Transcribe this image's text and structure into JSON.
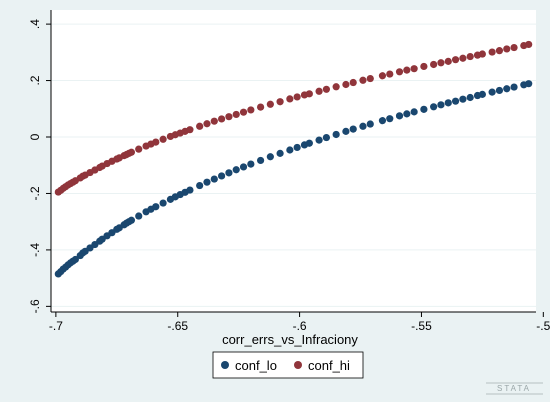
{
  "chart_data": {
    "type": "scatter",
    "title": "",
    "xlabel": "corr_errs_vs_Infraciony",
    "ylabel": "",
    "xlim": [
      -0.702,
      -0.503
    ],
    "ylim": [
      -0.62,
      0.45
    ],
    "x_ticks": [
      -0.7,
      -0.65,
      -0.6,
      -0.55,
      -0.5
    ],
    "x_tick_labels": [
      "-.7",
      "-.65",
      "-.6",
      "-.55",
      "-.5"
    ],
    "y_ticks": [
      -0.6,
      -0.4,
      -0.2,
      0,
      0.2,
      0.4
    ],
    "y_tick_labels": [
      "-.6",
      "-.4",
      "-.2",
      "0",
      ".2",
      ".4"
    ],
    "grid": "horizontal",
    "legend_position": "bottom",
    "series": [
      {
        "name": "conf_lo",
        "color": "#1a476f",
        "points": [
          [
            -0.699,
            -0.485
          ],
          [
            -0.698,
            -0.477
          ],
          [
            -0.697,
            -0.468
          ],
          [
            -0.696,
            -0.461
          ],
          [
            -0.695,
            -0.453
          ],
          [
            -0.694,
            -0.446
          ],
          [
            -0.693,
            -0.44
          ],
          [
            -0.692,
            -0.434
          ],
          [
            -0.69,
            -0.42
          ],
          [
            -0.689,
            -0.411
          ],
          [
            -0.688,
            -0.405
          ],
          [
            -0.686,
            -0.393
          ],
          [
            -0.684,
            -0.381
          ],
          [
            -0.682,
            -0.369
          ],
          [
            -0.681,
            -0.362
          ],
          [
            -0.679,
            -0.35
          ],
          [
            -0.677,
            -0.339
          ],
          [
            -0.675,
            -0.327
          ],
          [
            -0.674,
            -0.322
          ],
          [
            -0.672,
            -0.311
          ],
          [
            -0.671,
            -0.305
          ],
          [
            -0.67,
            -0.3
          ],
          [
            -0.669,
            -0.295
          ],
          [
            -0.666,
            -0.28
          ],
          [
            -0.663,
            -0.265
          ],
          [
            -0.661,
            -0.256
          ],
          [
            -0.659,
            -0.247
          ],
          [
            -0.656,
            -0.234
          ],
          [
            -0.653,
            -0.221
          ],
          [
            -0.651,
            -0.212
          ],
          [
            -0.649,
            -0.204
          ],
          [
            -0.647,
            -0.196
          ],
          [
            -0.645,
            -0.188
          ],
          [
            -0.641,
            -0.172
          ],
          [
            -0.638,
            -0.16
          ],
          [
            -0.635,
            -0.149
          ],
          [
            -0.632,
            -0.138
          ],
          [
            -0.629,
            -0.127
          ],
          [
            -0.626,
            -0.116
          ],
          [
            -0.623,
            -0.106
          ],
          [
            -0.62,
            -0.096
          ],
          [
            -0.616,
            -0.083
          ],
          [
            -0.612,
            -0.07
          ],
          [
            -0.608,
            -0.058
          ],
          [
            -0.604,
            -0.046
          ],
          [
            -0.601,
            -0.037
          ],
          [
            -0.598,
            -0.028
          ],
          [
            -0.596,
            -0.022
          ],
          [
            -0.592,
            -0.011
          ],
          [
            -0.589,
            -0.002
          ],
          [
            -0.585,
            0.009
          ],
          [
            -0.581,
            0.02
          ],
          [
            -0.578,
            0.028
          ],
          [
            -0.574,
            0.038
          ],
          [
            -0.571,
            0.046
          ],
          [
            -0.566,
            0.058
          ],
          [
            -0.563,
            0.065
          ],
          [
            -0.559,
            0.075
          ],
          [
            -0.556,
            0.082
          ],
          [
            -0.553,
            0.089
          ],
          [
            -0.549,
            0.098
          ],
          [
            -0.545,
            0.107
          ],
          [
            -0.542,
            0.114
          ],
          [
            -0.539,
            0.121
          ],
          [
            -0.536,
            0.127
          ],
          [
            -0.533,
            0.134
          ],
          [
            -0.53,
            0.14
          ],
          [
            -0.527,
            0.147
          ],
          [
            -0.525,
            0.151
          ],
          [
            -0.521,
            0.159
          ],
          [
            -0.518,
            0.165
          ],
          [
            -0.515,
            0.171
          ],
          [
            -0.512,
            0.177
          ],
          [
            -0.508,
            0.185
          ],
          [
            -0.506,
            0.189
          ]
        ]
      },
      {
        "name": "conf_hi",
        "color": "#90353b",
        "points": [
          [
            -0.699,
            -0.195
          ],
          [
            -0.698,
            -0.189
          ],
          [
            -0.697,
            -0.182
          ],
          [
            -0.696,
            -0.176
          ],
          [
            -0.695,
            -0.17
          ],
          [
            -0.694,
            -0.165
          ],
          [
            -0.693,
            -0.16
          ],
          [
            -0.692,
            -0.155
          ],
          [
            -0.69,
            -0.145
          ],
          [
            -0.689,
            -0.139
          ],
          [
            -0.688,
            -0.135
          ],
          [
            -0.686,
            -0.126
          ],
          [
            -0.684,
            -0.117
          ],
          [
            -0.682,
            -0.108
          ],
          [
            -0.681,
            -0.103
          ],
          [
            -0.679,
            -0.094
          ],
          [
            -0.677,
            -0.086
          ],
          [
            -0.675,
            -0.078
          ],
          [
            -0.674,
            -0.074
          ],
          [
            -0.672,
            -0.066
          ],
          [
            -0.671,
            -0.062
          ],
          [
            -0.67,
            -0.058
          ],
          [
            -0.669,
            -0.054
          ],
          [
            -0.666,
            -0.043
          ],
          [
            -0.663,
            -0.032
          ],
          [
            -0.661,
            -0.025
          ],
          [
            -0.659,
            -0.018
          ],
          [
            -0.656,
            -0.008
          ],
          [
            -0.653,
            0.002
          ],
          [
            -0.651,
            0.008
          ],
          [
            -0.649,
            0.014
          ],
          [
            -0.647,
            0.02
          ],
          [
            -0.645,
            0.026
          ],
          [
            -0.641,
            0.038
          ],
          [
            -0.638,
            0.047
          ],
          [
            -0.635,
            0.056
          ],
          [
            -0.632,
            0.064
          ],
          [
            -0.629,
            0.072
          ],
          [
            -0.626,
            0.08
          ],
          [
            -0.623,
            0.088
          ],
          [
            -0.62,
            0.096
          ],
          [
            -0.616,
            0.106
          ],
          [
            -0.612,
            0.116
          ],
          [
            -0.608,
            0.125
          ],
          [
            -0.604,
            0.135
          ],
          [
            -0.601,
            0.142
          ],
          [
            -0.598,
            0.149
          ],
          [
            -0.596,
            0.153
          ],
          [
            -0.592,
            0.162
          ],
          [
            -0.589,
            0.169
          ],
          [
            -0.585,
            0.178
          ],
          [
            -0.581,
            0.186
          ],
          [
            -0.578,
            0.193
          ],
          [
            -0.574,
            0.201
          ],
          [
            -0.571,
            0.207
          ],
          [
            -0.566,
            0.217
          ],
          [
            -0.563,
            0.223
          ],
          [
            -0.559,
            0.231
          ],
          [
            -0.556,
            0.237
          ],
          [
            -0.553,
            0.242
          ],
          [
            -0.549,
            0.25
          ],
          [
            -0.545,
            0.257
          ],
          [
            -0.542,
            0.263
          ],
          [
            -0.539,
            0.268
          ],
          [
            -0.536,
            0.274
          ],
          [
            -0.533,
            0.279
          ],
          [
            -0.53,
            0.285
          ],
          [
            -0.527,
            0.29
          ],
          [
            -0.525,
            0.294
          ],
          [
            -0.521,
            0.301
          ],
          [
            -0.518,
            0.306
          ],
          [
            -0.515,
            0.312
          ],
          [
            -0.512,
            0.317
          ],
          [
            -0.508,
            0.324
          ],
          [
            -0.506,
            0.328
          ]
        ]
      }
    ]
  },
  "watermark": "STATA"
}
